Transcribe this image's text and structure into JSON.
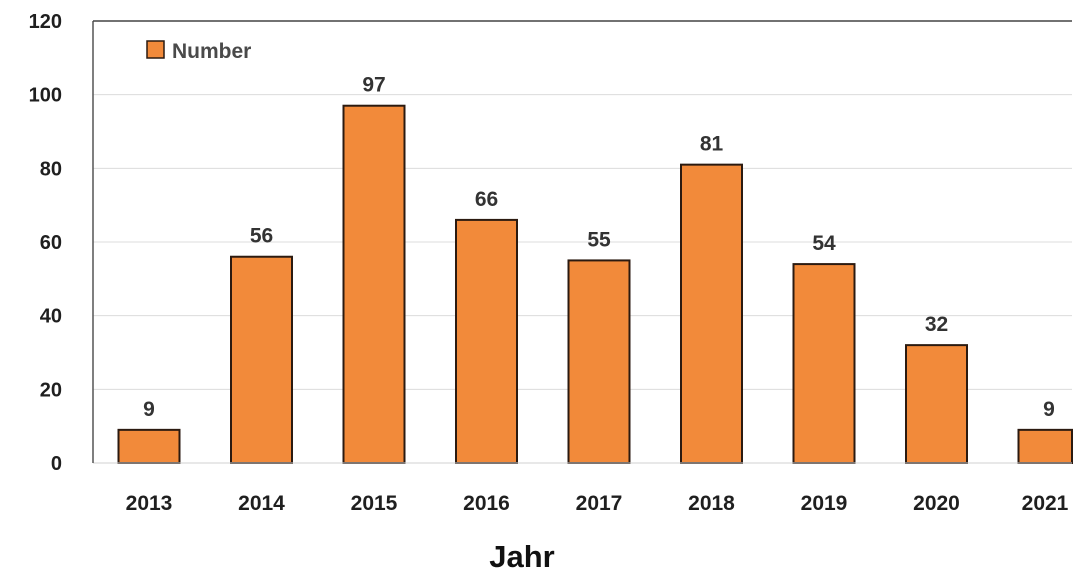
{
  "chart_data": {
    "type": "bar",
    "categories": [
      "2013",
      "2014",
      "2015",
      "2016",
      "2017",
      "2018",
      "2019",
      "2020",
      "2021"
    ],
    "series": [
      {
        "name": "Number",
        "values": [
          9,
          56,
          97,
          66,
          55,
          81,
          54,
          32,
          9
        ]
      }
    ],
    "xlabel": "Jahr",
    "ylabel": "",
    "ylim": [
      0,
      120
    ],
    "yticks": [
      0,
      20,
      40,
      60,
      80,
      100,
      120
    ],
    "grid": true,
    "legend": "top-left",
    "bar_color": "#F28A3A",
    "data_labels": true
  }
}
